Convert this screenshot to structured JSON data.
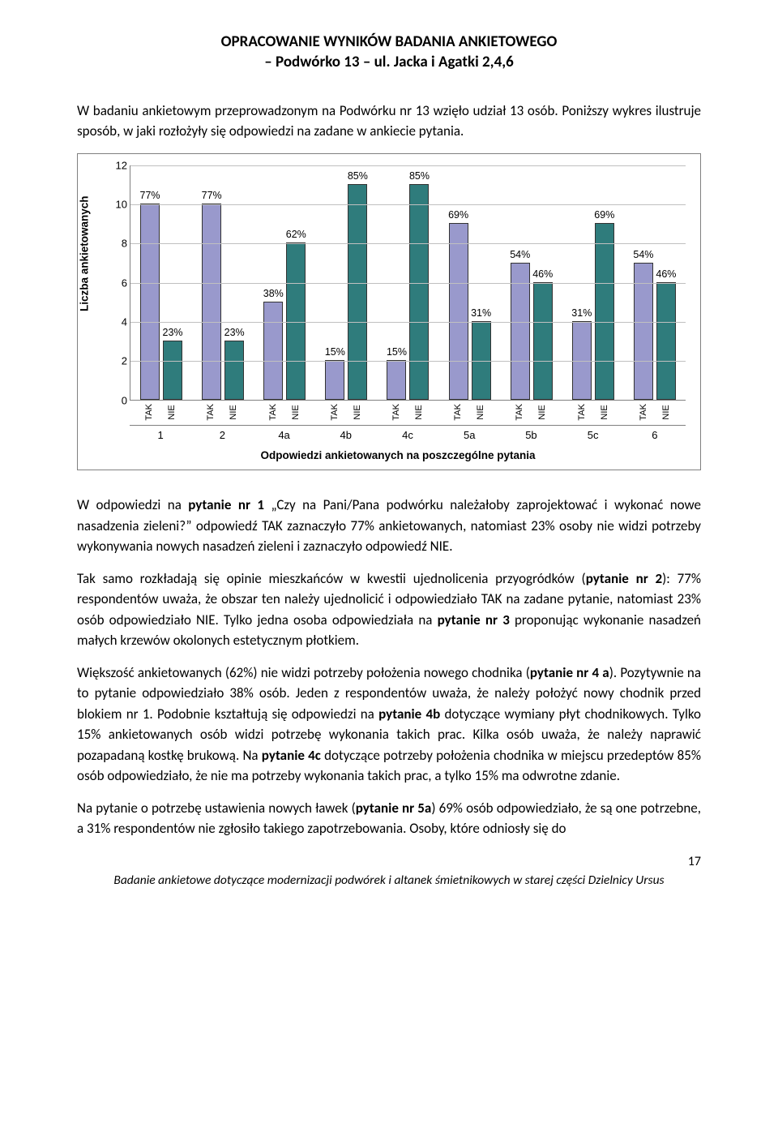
{
  "title_line1": "OPRACOWANIE WYNIKÓW BADANIA ANKIETOWEGO",
  "title_line2": "– Podwórko 13 – ul. Jacka i Agatki 2,4,6",
  "intro": "W badaniu ankietowym przeprowadzonym na Podwórku nr 13 wzięło udział 13 osób. Poniższy wykres ilustruje sposób, w jaki rozłożyły się odpowiedzi na zadane w ankiecie pytania.",
  "chart": {
    "type": "bar",
    "y_label": "Liczba ankietowanych",
    "x_caption": "Odpowiedzi ankietowanych na poszczególne pytania",
    "ymax": 12,
    "ytick_step": 2,
    "yticks": [
      0,
      2,
      4,
      6,
      8,
      10,
      12
    ],
    "colors": {
      "tak": "#9999cc",
      "nie": "#2f7c7c",
      "grid": "#c0c0c0",
      "axis": "#808080"
    },
    "groups": [
      {
        "cat": "1",
        "tak": 10,
        "nie": 3,
        "tak_pct": "77%",
        "nie_pct": "23%"
      },
      {
        "cat": "2",
        "tak": 10,
        "nie": 3,
        "tak_pct": "77%",
        "nie_pct": "23%"
      },
      {
        "cat": "4a",
        "tak": 5,
        "nie": 8,
        "tak_pct": "38%",
        "nie_pct": "62%"
      },
      {
        "cat": "4b",
        "tak": 2,
        "nie": 11,
        "tak_pct": "15%",
        "nie_pct": "85%"
      },
      {
        "cat": "4c",
        "tak": 2,
        "nie": 11,
        "tak_pct": "15%",
        "nie_pct": "85%"
      },
      {
        "cat": "5a",
        "tak": 9,
        "nie": 4,
        "tak_pct": "69%",
        "nie_pct": "31%"
      },
      {
        "cat": "5b",
        "tak": 7,
        "nie": 6,
        "tak_pct": "54%",
        "nie_pct": "46%"
      },
      {
        "cat": "5c",
        "tak": 4,
        "nie": 9,
        "tak_pct": "31%",
        "nie_pct": "69%"
      },
      {
        "cat": "6",
        "tak": 7,
        "nie": 6,
        "tak_pct": "54%",
        "nie_pct": "46%"
      }
    ],
    "subcats": [
      "TAK",
      "NIE"
    ]
  },
  "para2": {
    "t1": "W odpowiedzi na ",
    "b1": "pytanie nr 1",
    "t2": " „Czy na Pani/Pana podwórku należałoby zaprojektować i wykonać nowe nasadzenia zieleni?” odpowiedź TAK zaznaczyło 77% ankietowanych, natomiast 23% osoby nie widzi potrzeby wykonywania nowych nasadzeń zieleni i zaznaczyło odpowiedź NIE."
  },
  "para3": {
    "t1": "Tak samo rozkładają się opinie mieszkańców w kwestii ujednolicenia przyogródków (",
    "b1": "pytanie nr 2",
    "t2": "): 77% respondentów uważa, że obszar ten należy ujednolicić i odpowiedziało TAK na zadane pytanie, natomiast 23% osób odpowiedziało NIE. Tylko jedna osoba odpowiedziała na ",
    "b2": "pytanie nr 3",
    "t3": " proponując wykonanie nasadzeń małych krzewów okolonych estetycznym płotkiem."
  },
  "para4": {
    "t1": "Większość ankietowanych (62%) nie widzi potrzeby położenia nowego chodnika (",
    "b1": "pytanie nr 4 a",
    "t2": "). Pozytywnie na to pytanie odpowiedziało 38% osób. Jeden z respondentów uważa, że należy położyć nowy chodnik przed blokiem nr 1. Podobnie kształtują się odpowiedzi na ",
    "b2": "pytanie 4b",
    "t3": " dotyczące wymiany płyt chodnikowych. Tylko 15% ankietowanych osób widzi potrzebę wykonania takich prac. Kilka osób uważa, że należy naprawić pozapadaną kostkę brukową. Na ",
    "b3": "pytanie 4c",
    "t4": " dotyczące potrzeby położenia chodnika w miejscu przedeptów 85% osób odpowiedziało, że nie ma potrzeby wykonania takich prac, a tylko 15% ma odwrotne zdanie."
  },
  "para5": {
    "t1": "Na pytanie o potrzebę ustawienia nowych ławek (",
    "b1": "pytanie nr 5a",
    "t2": ") 69% osób odpowiedziało, że są one potrzebne, a 31% respondentów nie zgłosiło takiego zapotrzebowania. Osoby, które odniosły się do"
  },
  "page_number": "17",
  "footer": "Badanie ankietowe dotyczące modernizacji podwórek i altanek śmietnikowych w starej części Dzielnicy Ursus"
}
